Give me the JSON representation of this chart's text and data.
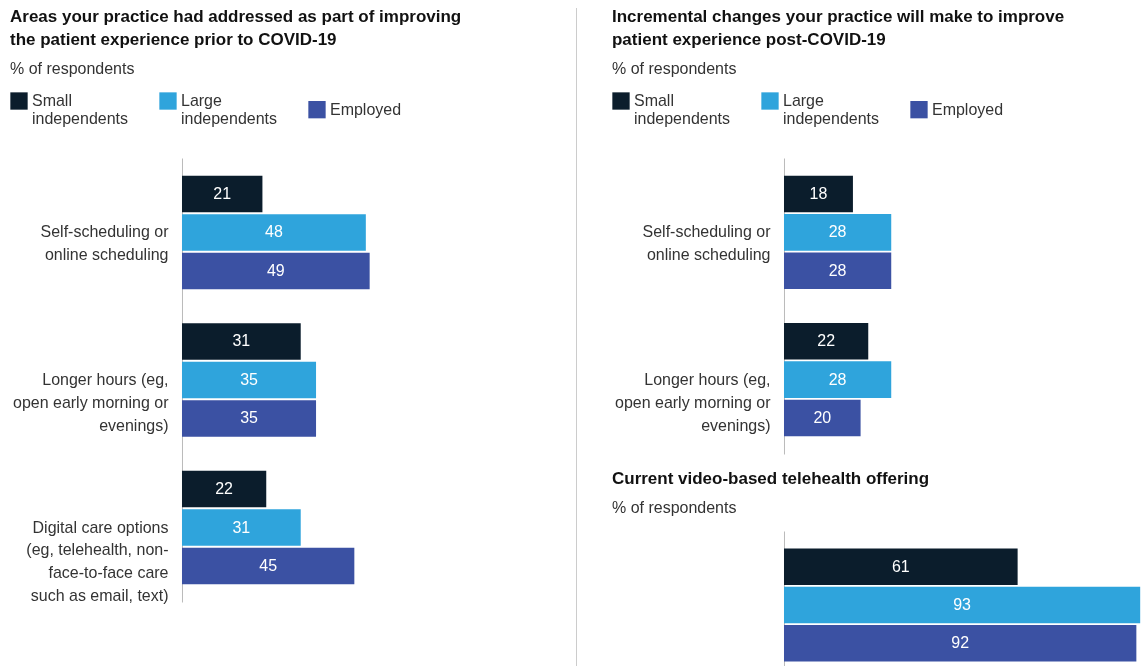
{
  "chart_data": [
    {
      "type": "bar",
      "orientation": "horizontal",
      "title": "Areas your practice had addressed as part of improving the patient experience prior to COVID-19",
      "subtitle": "% of respondents",
      "categories": [
        "Self-scheduling or online scheduling",
        "Longer hours (eg, open early morning or evenings)",
        "Digital care options (eg, telehealth, non-face-to-face care such as email, text)"
      ],
      "series": [
        {
          "name": "Small independents",
          "color": "#0b1d2c",
          "values": [
            21,
            31,
            22
          ]
        },
        {
          "name": "Large independents",
          "color": "#2fa4dc",
          "values": [
            48,
            35,
            31
          ]
        },
        {
          "name": "Employed",
          "color": "#3b51a3",
          "values": [
            49,
            35,
            45
          ]
        }
      ],
      "data_labels": true,
      "legend": "top left"
    },
    {
      "type": "bar",
      "orientation": "horizontal",
      "title": "Incremental changes your practice will make to improve patient experience post-COVID-19",
      "subtitle": "% of respondents",
      "categories": [
        "Self-scheduling or online scheduling",
        "Longer hours (eg, open early morning or evenings)"
      ],
      "series": [
        {
          "name": "Small independents",
          "color": "#0b1d2c",
          "values": [
            18,
            22
          ]
        },
        {
          "name": "Large independents",
          "color": "#2fa4dc",
          "values": [
            28,
            28
          ]
        },
        {
          "name": "Employed",
          "color": "#3b51a3",
          "values": [
            28,
            20
          ]
        }
      ],
      "data_labels": true,
      "legend": "top left"
    },
    {
      "type": "bar",
      "orientation": "horizontal",
      "title": "Current video-based telehealth offering",
      "subtitle": "% of respondents",
      "categories": [
        null
      ],
      "series": [
        {
          "color": "#0b1d2c",
          "values": [
            61
          ]
        },
        {
          "color": "#2fa4dc",
          "values": [
            93
          ]
        },
        {
          "color": "#3b51a3",
          "values": [
            92
          ]
        }
      ],
      "data_labels": true
    }
  ]
}
